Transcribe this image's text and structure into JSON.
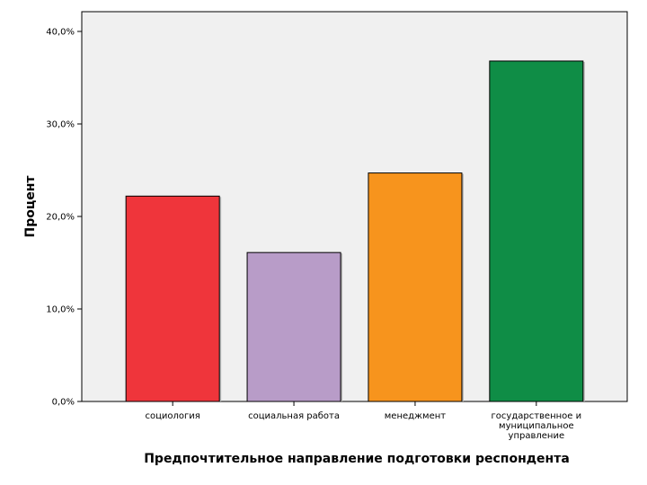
{
  "chart_data": {
    "type": "bar",
    "categories": [
      "социология",
      "социальная работа",
      "менеджмент",
      "государственное и муниципальное управление"
    ],
    "category_label_lines": [
      [
        "социология"
      ],
      [
        "социальная работа"
      ],
      [
        "менеджмент"
      ],
      [
        "государственное и",
        "муниципальное",
        "управление"
      ]
    ],
    "values": [
      22.2,
      16.1,
      24.7,
      36.8
    ],
    "colors": [
      "#ef353b",
      "#b89cc8",
      "#f7941d",
      "#0f8d46"
    ],
    "ylim": [
      0,
      40
    ],
    "yticks": [
      0,
      10,
      20,
      30,
      40
    ],
    "ytick_labels": [
      "0,0%",
      "10,0%",
      "20,0%",
      "30,0%",
      "40,0%"
    ],
    "xlabel": "Предпочтительное направление подготовки респондента",
    "ylabel": "Процент",
    "title": "",
    "plot_background": "#f0f0f0",
    "grid": false,
    "legend": "none"
  }
}
